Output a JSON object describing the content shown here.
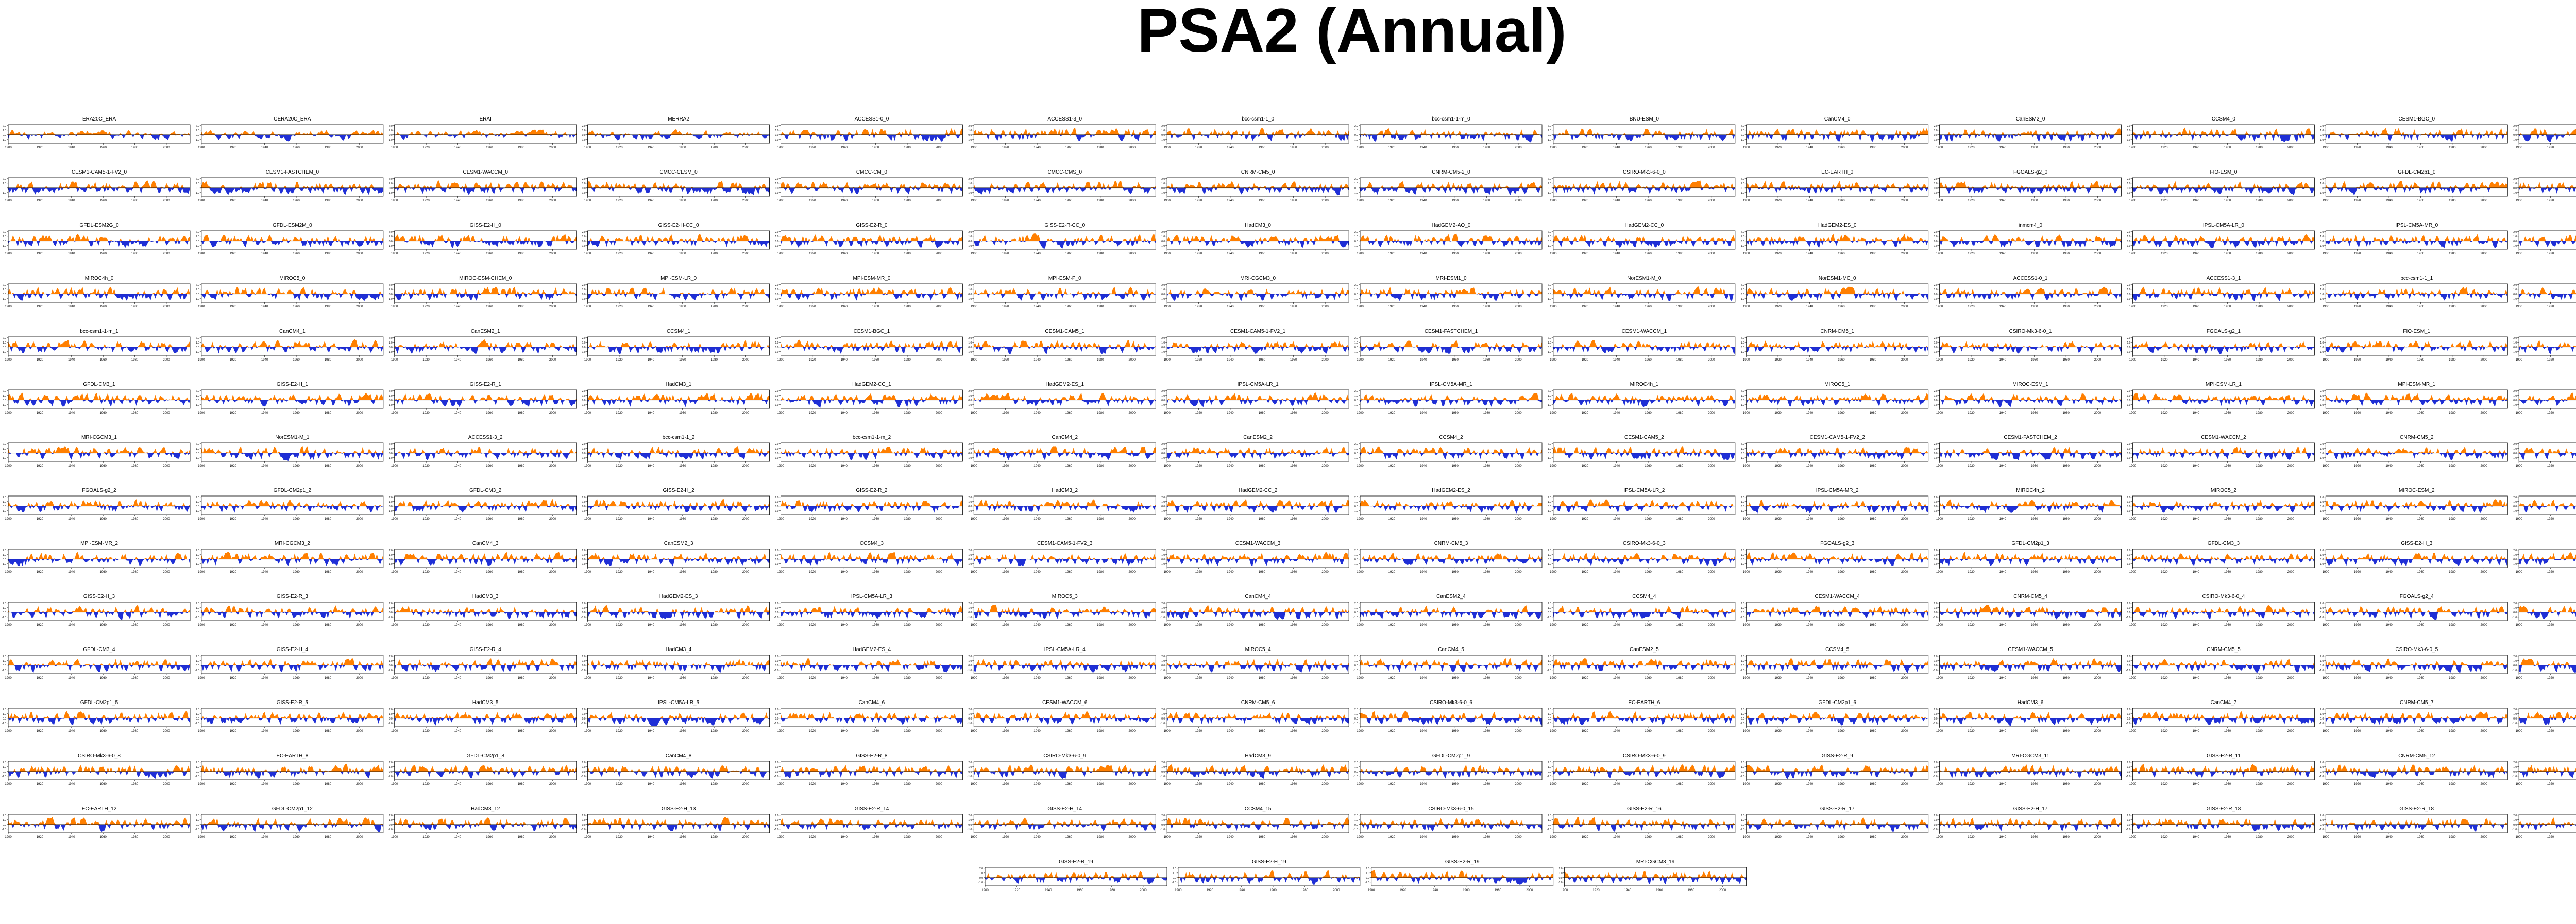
{
  "title": "PSA2 (Annual)",
  "colors": {
    "positive": "#ff7f00",
    "negative": "#1f2fd6",
    "background": "#ffffff",
    "axis": "#000000"
  },
  "chart_data": {
    "type": "area",
    "title": "PSA2 (Annual)",
    "y_tick_labels": [
      "2.0",
      "1.0",
      "0.0",
      "-1.0"
    ],
    "ylim": [
      -2,
      2
    ],
    "x_tick_labels": [
      "1900",
      "1920",
      "1940",
      "1960",
      "1980",
      "2000"
    ],
    "xlim": [
      1900,
      2015
    ],
    "grid": false,
    "fill_style": "positive anomalies orange, negative anomalies blue, filled against zero",
    "panels": [
      "ERA20C_ERA",
      "CERA20C_ERA",
      "ERAI",
      "MERRA2",
      "ACCESS1-0_0",
      "ACCESS1-3_0",
      "bcc-csm1-1_0",
      "bcc-csm1-1-m_0",
      "BNU-ESM_0",
      "CanCM4_0",
      "CanESM2_0",
      "CCSM4_0",
      "CESM1-BGC_0",
      "CESM1-CAM5_0",
      "CESM1-CAM5-1-FV2_0",
      "CESM1-FASTCHEM_0",
      "CESM1-WACCM_0",
      "CMCC-CESM_0",
      "CMCC-CM_0",
      "CMCC-CMS_0",
      "CNRM-CM5_0",
      "CNRM-CM5-2_0",
      "CSIRO-Mk3-6-0_0",
      "EC-EARTH_0",
      "FGOALS-g2_0",
      "FIO-ESM_0",
      "GFDL-CM2p1_0",
      "GFDL-CM3_0",
      "GFDL-ESM2G_0",
      "GFDL-ESM2M_0",
      "GISS-E2-H_0",
      "GISS-E2-H-CC_0",
      "GISS-E2-R_0",
      "GISS-E2-R-CC_0",
      "HadCM3_0",
      "HadGEM2-AO_0",
      "HadGEM2-CC_0",
      "HadGEM2-ES_0",
      "inmcm4_0",
      "IPSL-CM5A-LR_0",
      "IPSL-CM5A-MR_0",
      "IPSL-CM5B-LR_0",
      "MIROC4h_0",
      "MIROC5_0",
      "MIROC-ESM-CHEM_0",
      "MPI-ESM-LR_0",
      "MPI-ESM-MR_0",
      "MPI-ESM-P_0",
      "MRI-CGCM3_0",
      "MRI-ESM1_0",
      "NorESM1-M_0",
      "NorESM1-ME_0",
      "ACCESS1-0_1",
      "ACCESS1-3_1",
      "bcc-csm1-1_1",
      "bcc-csm1-1-m_1",
      "bcc-csm1-1-m_1",
      "CanCM4_1",
      "CanESM2_1",
      "CCSM4_1",
      "CESM1-BGC_1",
      "CESM1-CAM5_1",
      "CESM1-CAM5-1-FV2_1",
      "CESM1-FASTCHEM_1",
      "CESM1-WACCM_1",
      "CNRM-CM5_1",
      "CSIRO-Mk3-6-0_1",
      "FGOALS-g2_1",
      "FIO-ESM_1",
      "GFDL-CM2p1_1",
      "GFDL-CM3_1",
      "GISS-E2-H_1",
      "GISS-E2-R_1",
      "HadCM3_1",
      "HadGEM2-CC_1",
      "HadGEM2-ES_1",
      "IPSL-CM5A-LR_1",
      "IPSL-CM5A-MR_1",
      "MIROC4h_1",
      "MIROC5_1",
      "MIROC-ESM_1",
      "MPI-ESM-LR_1",
      "MPI-ESM-MR_1",
      "MPI-ESM-P_1",
      "MRI-CGCM3_1",
      "NorESM1-M_1",
      "ACCESS1-3_2",
      "bcc-csm1-1_2",
      "bcc-csm1-1-m_2",
      "CanCM4_2",
      "CanESM2_2",
      "CCSM4_2",
      "CESM1-CAM5_2",
      "CESM1-CAM5-1-FV2_2",
      "CESM1-FASTCHEM_2",
      "CESM1-WACCM_2",
      "CNRM-CM5_2",
      "CSIRO-Mk3-6-0_2",
      "FGOALS-g2_2",
      "GFDL-CM2p1_2",
      "GFDL-CM3_2",
      "GISS-E2-H_2",
      "GISS-E2-R_2",
      "HadCM3_2",
      "HadGEM2-CC_2",
      "HadGEM2-ES_2",
      "IPSL-CM5A-LR_2",
      "IPSL-CM5A-MR_2",
      "MIROC4h_2",
      "MIROC5_2",
      "MIROC-ESM_2",
      "MPI-ESM-LR_2",
      "MPI-ESM-MR_2",
      "MRI-CGCM3_2",
      "CanCM4_3",
      "CanESM2_3",
      "CCSM4_3",
      "CESM1-CAM5-1-FV2_3",
      "CESM1-WACCM_3",
      "CNRM-CM5_3",
      "CSIRO-Mk3-6-0_3",
      "FGOALS-g2_3",
      "GFDL-CM2p1_3",
      "GFDL-CM3_3",
      "GISS-E2-H_3",
      "GISS-E2-R_3",
      "GISS-E2-H_3",
      "GISS-E2-R_3",
      "HadCM3_3",
      "HadGEM2-ES_3",
      "IPSL-CM5A-LR_3",
      "MIROC5_3",
      "CanCM4_4",
      "CanESM2_4",
      "CCSM4_4",
      "CESM1-WACCM_4",
      "CNRM-CM5_4",
      "CSIRO-Mk3-6-0_4",
      "FGOALS-g2_4",
      "GFDL-CM2p1_4",
      "GFDL-CM3_4",
      "GISS-E2-H_4",
      "GISS-E2-R_4",
      "HadCM3_4",
      "HadGEM2-ES_4",
      "IPSL-CM5A-LR_4",
      "MIROC5_4",
      "CanCM4_5",
      "CanESM2_5",
      "CCSM4_5",
      "CESM1-WACCM_5",
      "CNRM-CM5_5",
      "CSIRO-Mk3-6-0_5",
      "EC-EARTH_5",
      "GFDL-CM2p1_5",
      "GISS-E2-R_5",
      "HadCM3_5",
      "IPSL-CM5A-LR_5",
      "CanCM4_6",
      "CESM1-WACCM_6",
      "CNRM-CM5_6",
      "CSIRO-Mk3-6-0_6",
      "EC-EARTH_6",
      "GFDL-CM2p1_6",
      "HadCM3_6",
      "CanCM4_7",
      "CNRM-CM5_7",
      "CSIRO-Mk3-6-0_7",
      "CSIRO-Mk3-6-0_8",
      "EC-EARTH_8",
      "GFDL-CM2p1_8",
      "CanCM4_8",
      "GISS-E2-R_8",
      "CSIRO-Mk3-6-0_9",
      "HadCM3_9",
      "GFDL-CM2p1_9",
      "CSIRO-Mk3-6-0_9",
      "GISS-E2-R_9",
      "MRI-CGCM3_11",
      "GISS-E2-R_11",
      "CNRM-CM5_12",
      "EC-EARTH_12",
      "EC-EARTH_12",
      "GFDL-CM2p1_12",
      "HadCM3_12",
      "GISS-E2-H_13",
      "GISS-E2-R_14",
      "GISS-E2-H_14",
      "CCSM4_15",
      "CSIRO-Mk3-6-0_15",
      "GISS-E2-R_16",
      "GISS-E2-R_17",
      "GISS-E2-H_17",
      "GISS-E2-R_18",
      "GISS-E2-R_18",
      "GISS-E2-R_19",
      "GISS-E2-R_19",
      "GISS-E2-H_19",
      "GISS-E2-R_19",
      "MRI-CGCM3_19"
    ]
  }
}
